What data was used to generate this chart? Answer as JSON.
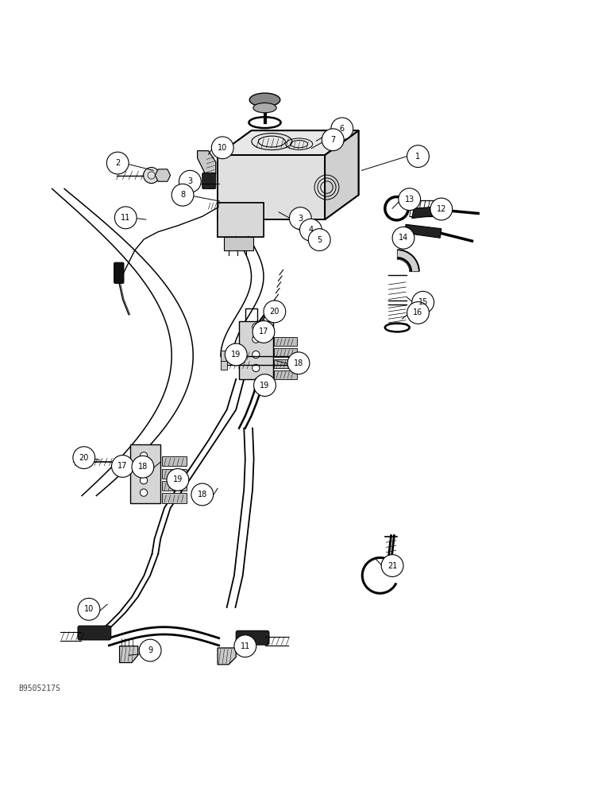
{
  "title": "",
  "watermark": "B9505217S",
  "bg_color": "#ffffff",
  "line_color": "#000000",
  "figsize": [
    7.72,
    10.0
  ],
  "dpi": 100
}
